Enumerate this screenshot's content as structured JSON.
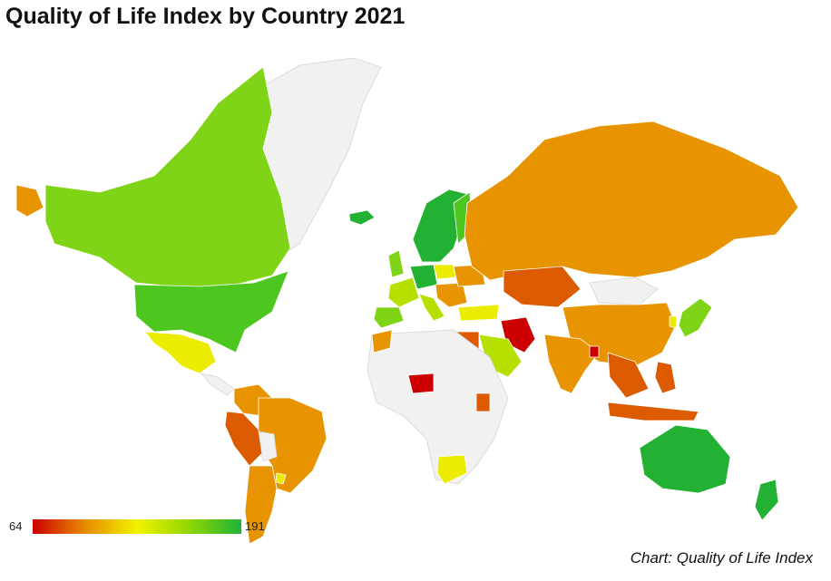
{
  "title": "Quality of Life Index by Country 2021",
  "source": "Chart: Quality of Life Index",
  "legend": {
    "min_label": "64",
    "max_label": "191",
    "min": 64,
    "max": 191,
    "colors": [
      "#cc0000",
      "#e88a00",
      "#f2f200",
      "#8fd600",
      "#1fb33a"
    ]
  },
  "no_data_color": "#f1f1f1",
  "palette": {
    "red": "#cc0000",
    "dark_orange": "#dc5a00",
    "orange": "#e89400",
    "yellow": "#ecec00",
    "yellow_green": "#b6e000",
    "light_green": "#7fd417",
    "green": "#4dc620",
    "dark_green": "#22b133"
  }
}
